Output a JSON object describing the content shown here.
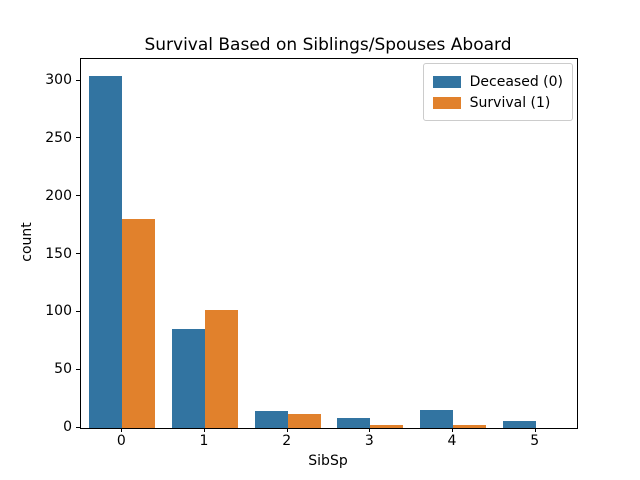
{
  "chart_data": {
    "type": "bar",
    "title": "Survival Based on Siblings/Spouses Aboard",
    "xlabel": "SibSp",
    "ylabel": "count",
    "categories": [
      "0",
      "1",
      "2",
      "3",
      "4",
      "5"
    ],
    "series": [
      {
        "name": "Deceased (0)",
        "color": "#3274a1",
        "values": [
          304,
          86,
          15,
          9,
          16,
          6
        ]
      },
      {
        "name": "Survival (1)",
        "color": "#e1812c",
        "values": [
          181,
          102,
          12,
          3,
          3,
          0
        ]
      }
    ],
    "ylim": [
      0,
      319
    ],
    "yticks": [
      0,
      50,
      100,
      150,
      200,
      250,
      300
    ],
    "grid": false,
    "legend_position": "upper-right",
    "group_total_width_fraction": 0.8
  }
}
